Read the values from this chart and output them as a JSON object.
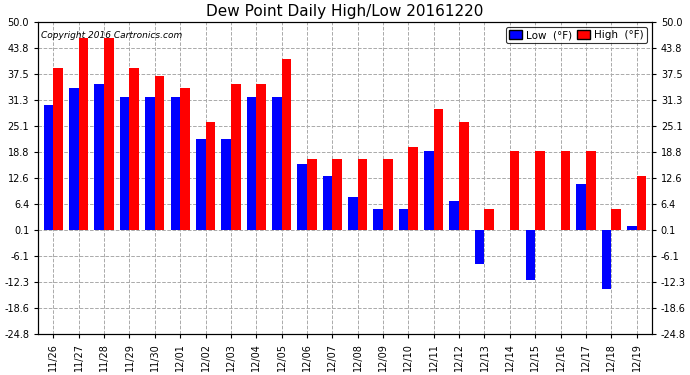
{
  "title": "Dew Point Daily High/Low 20161220",
  "copyright": "Copyright 2016 Cartronics.com",
  "dates": [
    "11/26",
    "11/27",
    "11/28",
    "11/29",
    "11/30",
    "12/01",
    "12/02",
    "12/03",
    "12/04",
    "12/05",
    "12/06",
    "12/07",
    "12/08",
    "12/09",
    "12/10",
    "12/11",
    "12/12",
    "12/13",
    "12/14",
    "12/15",
    "12/16",
    "12/17",
    "12/18",
    "12/19"
  ],
  "high": [
    39,
    46,
    46,
    39,
    37,
    34,
    26,
    35,
    35,
    41,
    17,
    17,
    17,
    17,
    20,
    29,
    26,
    5,
    19,
    19,
    19,
    19,
    5,
    13
  ],
  "low": [
    30,
    34,
    35,
    32,
    32,
    32,
    22,
    22,
    32,
    32,
    16,
    13,
    8,
    5,
    5,
    19,
    7,
    -8,
    0,
    -12,
    0,
    11,
    -14,
    1
  ],
  "ylim": [
    -24.8,
    50.0
  ],
  "yticks": [
    -24.8,
    -18.6,
    -12.3,
    -6.1,
    0.1,
    6.4,
    12.6,
    18.8,
    25.1,
    31.3,
    37.5,
    43.8,
    50.0
  ],
  "ytick_labels": [
    "-24.8",
    "-18.6",
    "-12.3",
    "-6.1",
    "0.1",
    "6.4",
    "12.6",
    "18.8",
    "25.1",
    "31.3",
    "37.5",
    "43.8",
    "50.0"
  ],
  "high_color": "#FF0000",
  "low_color": "#0000FF",
  "bg_color": "#FFFFFF",
  "plot_bg": "#FFFFFF",
  "grid_color": "#AAAAAA",
  "title_fontsize": 11,
  "bar_width": 0.38
}
